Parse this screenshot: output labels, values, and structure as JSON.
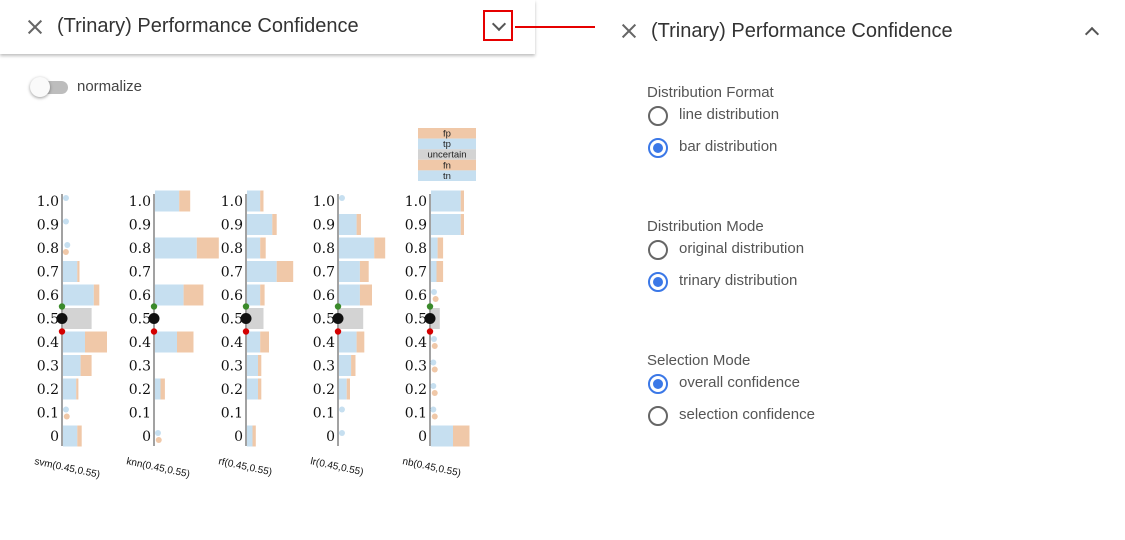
{
  "left_panel": {
    "title": "(Trinary) Performance Confidence",
    "normalize_label": "normalize"
  },
  "right_panel": {
    "title": "(Trinary) Performance Confidence",
    "sections": [
      {
        "title": "Distribution Format",
        "options": [
          {
            "label": "line distribution",
            "checked": false
          },
          {
            "label": "bar distribution",
            "checked": true
          }
        ]
      },
      {
        "title": "Distribution Mode",
        "options": [
          {
            "label": "original distribution",
            "checked": false
          },
          {
            "label": "trinary distribution",
            "checked": true
          }
        ]
      },
      {
        "title": "Selection Mode",
        "options": [
          {
            "label": "overall confidence",
            "checked": true
          },
          {
            "label": "selection confidence",
            "checked": false
          }
        ]
      }
    ]
  },
  "colors": {
    "tp_tn": "#c6dff0",
    "fp_fn": "#f0c8a8",
    "uncertain": "#d3d3d3",
    "radio_accent": "#3b78e7",
    "highlight": "#e60000",
    "upper_threshold": "#3a8a2a",
    "lower_threshold": "#d40000"
  },
  "chart_data": {
    "type": "bar",
    "legend": [
      "fp",
      "tp",
      "uncertain",
      "fn",
      "tn"
    ],
    "y_ticks": [
      "1.0",
      "0.9",
      "0.8",
      "0.7",
      "0.6",
      "0.5",
      "0.4",
      "0.3",
      "0.2",
      "0.1",
      "0"
    ],
    "models": [
      {
        "label": "svm(0.45,0.55)",
        "threshold_marker": 0.5,
        "bins": [
          {
            "conf": 1.0,
            "blue": 0.03,
            "orange": 0
          },
          {
            "conf": 0.9,
            "blue": 0.03,
            "orange": 0
          },
          {
            "conf": 0.8,
            "blue": 0.05,
            "orange": 0.01
          },
          {
            "conf": 0.7,
            "blue": 0.13,
            "orange": 0.02
          },
          {
            "conf": 0.6,
            "blue": 0.28,
            "orange": 0.05
          },
          {
            "conf": 0.5,
            "gray": 0.26
          },
          {
            "conf": 0.4,
            "blue": 0.2,
            "orange": 0.2
          },
          {
            "conf": 0.3,
            "blue": 0.16,
            "orange": 0.1
          },
          {
            "conf": 0.2,
            "blue": 0.12,
            "orange": 0.02
          },
          {
            "conf": 0.1,
            "blue": 0.03,
            "orange": 0.02
          },
          {
            "conf": 0,
            "blue": 0.13,
            "orange": 0.04
          }
        ]
      },
      {
        "label": "knn(0.45,0.55)",
        "threshold_marker": 0.5,
        "bins": [
          {
            "conf": 1.0,
            "blue": 0.22,
            "orange": 0.1
          },
          {
            "conf": 0.9,
            "blue": 0,
            "orange": 0
          },
          {
            "conf": 0.8,
            "blue": 0.38,
            "orange": 0.2
          },
          {
            "conf": 0.7,
            "blue": 0,
            "orange": 0
          },
          {
            "conf": 0.6,
            "blue": 0.26,
            "orange": 0.18
          },
          {
            "conf": 0.5,
            "gray": 0
          },
          {
            "conf": 0.4,
            "blue": 0.2,
            "orange": 0.15
          },
          {
            "conf": 0.3,
            "blue": 0,
            "orange": 0
          },
          {
            "conf": 0.2,
            "blue": 0.05,
            "orange": 0.04
          },
          {
            "conf": 0.1,
            "blue": 0,
            "orange": 0
          },
          {
            "conf": 0,
            "blue": 0.03,
            "orange": 0.02
          }
        ]
      },
      {
        "label": "rf(0.45,0.55)",
        "threshold_marker": 0.5,
        "bins": [
          {
            "conf": 1.0,
            "blue": 0.12,
            "orange": 0.03
          },
          {
            "conf": 0.9,
            "blue": 0.23,
            "orange": 0.04
          },
          {
            "conf": 0.8,
            "blue": 0.12,
            "orange": 0.05
          },
          {
            "conf": 0.7,
            "blue": 0.27,
            "orange": 0.15
          },
          {
            "conf": 0.6,
            "blue": 0.12,
            "orange": 0.04
          },
          {
            "conf": 0.5,
            "gray": 0.15
          },
          {
            "conf": 0.4,
            "blue": 0.12,
            "orange": 0.08
          },
          {
            "conf": 0.3,
            "blue": 0.1,
            "orange": 0.03
          },
          {
            "conf": 0.2,
            "blue": 0.1,
            "orange": 0.03
          },
          {
            "conf": 0.1,
            "blue": 0,
            "orange": 0
          },
          {
            "conf": 0,
            "blue": 0.05,
            "orange": 0.03
          }
        ]
      },
      {
        "label": "lr(0.45,0.55)",
        "threshold_marker": 0.5,
        "bins": [
          {
            "conf": 1.0,
            "blue": 0.03,
            "orange": 0
          },
          {
            "conf": 0.9,
            "blue": 0.16,
            "orange": 0.04
          },
          {
            "conf": 0.8,
            "blue": 0.32,
            "orange": 0.1
          },
          {
            "conf": 0.7,
            "blue": 0.19,
            "orange": 0.08
          },
          {
            "conf": 0.6,
            "blue": 0.19,
            "orange": 0.11
          },
          {
            "conf": 0.5,
            "gray": 0.22
          },
          {
            "conf": 0.4,
            "blue": 0.16,
            "orange": 0.07
          },
          {
            "conf": 0.3,
            "blue": 0.11,
            "orange": 0.04
          },
          {
            "conf": 0.2,
            "blue": 0.07,
            "orange": 0.03
          },
          {
            "conf": 0.1,
            "blue": 0.03,
            "orange": 0
          },
          {
            "conf": 0,
            "blue": 0.03,
            "orange": 0
          }
        ]
      },
      {
        "label": "nb(0.45,0.55)",
        "threshold_marker": 0.5,
        "bins": [
          {
            "conf": 1.0,
            "blue": 0.27,
            "orange": 0.03
          },
          {
            "conf": 0.9,
            "blue": 0.27,
            "orange": 0.03
          },
          {
            "conf": 0.8,
            "blue": 0.06,
            "orange": 0.05
          },
          {
            "conf": 0.7,
            "blue": 0.05,
            "orange": 0.06
          },
          {
            "conf": 0.6,
            "blue": 0.03,
            "orange": 0.03
          },
          {
            "conf": 0.5,
            "gray": 0.08
          },
          {
            "conf": 0.4,
            "blue": 0.03,
            "orange": 0.02
          },
          {
            "conf": 0.3,
            "blue": 0.02,
            "orange": 0.02
          },
          {
            "conf": 0.2,
            "blue": 0.02,
            "orange": 0.02
          },
          {
            "conf": 0.1,
            "blue": 0.02,
            "orange": 0.02
          },
          {
            "conf": 0,
            "blue": 0.2,
            "orange": 0.15
          }
        ]
      }
    ]
  }
}
